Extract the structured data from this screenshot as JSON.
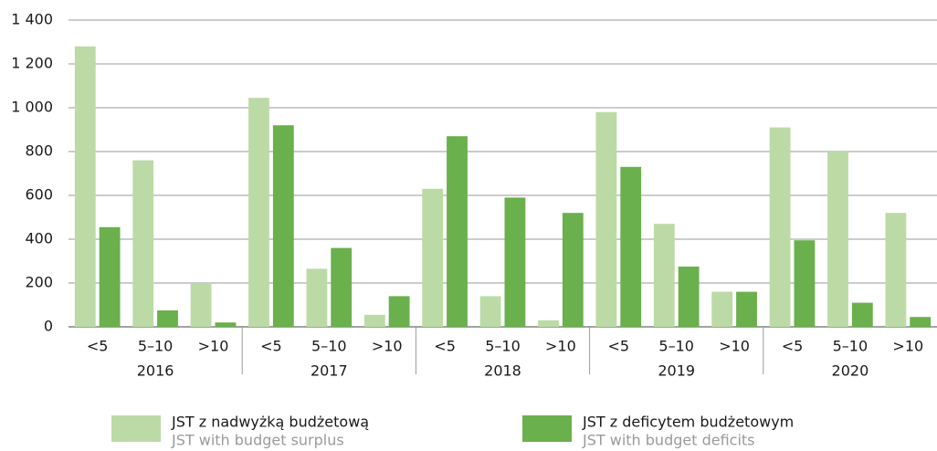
{
  "chart_data": {
    "type": "bar",
    "categories": [
      "<5",
      "5–10",
      ">10",
      "<5",
      "5–10",
      ">10",
      "<5",
      "5–10",
      ">10",
      "<5",
      "5–10",
      ">10",
      "<5",
      "5–10",
      ">10"
    ],
    "groups": [
      "2016",
      "2017",
      "2018",
      "2019",
      "2020"
    ],
    "series": [
      {
        "name": "JST z nadwyżką budżetową",
        "name_en": "JST with budget surplus",
        "color": "#bcdaa6",
        "values": [
          1280,
          760,
          200,
          1045,
          265,
          55,
          630,
          140,
          30,
          980,
          470,
          160,
          910,
          800,
          520
        ]
      },
      {
        "name": "JST z deficytem budżetowym",
        "name_en": "JST with budget deficits",
        "color": "#6ab04c",
        "values": [
          455,
          75,
          20,
          920,
          360,
          140,
          870,
          590,
          520,
          730,
          275,
          160,
          395,
          110,
          45
        ]
      }
    ],
    "ylim": [
      0,
      1400
    ],
    "yticks": [
      0,
      200,
      400,
      600,
      800,
      {
        "value": 1000,
        "label": "1 000"
      },
      {
        "value": 1200,
        "label": "1 200"
      },
      {
        "value": 1400,
        "label": "1 400"
      }
    ],
    "grid": true
  }
}
